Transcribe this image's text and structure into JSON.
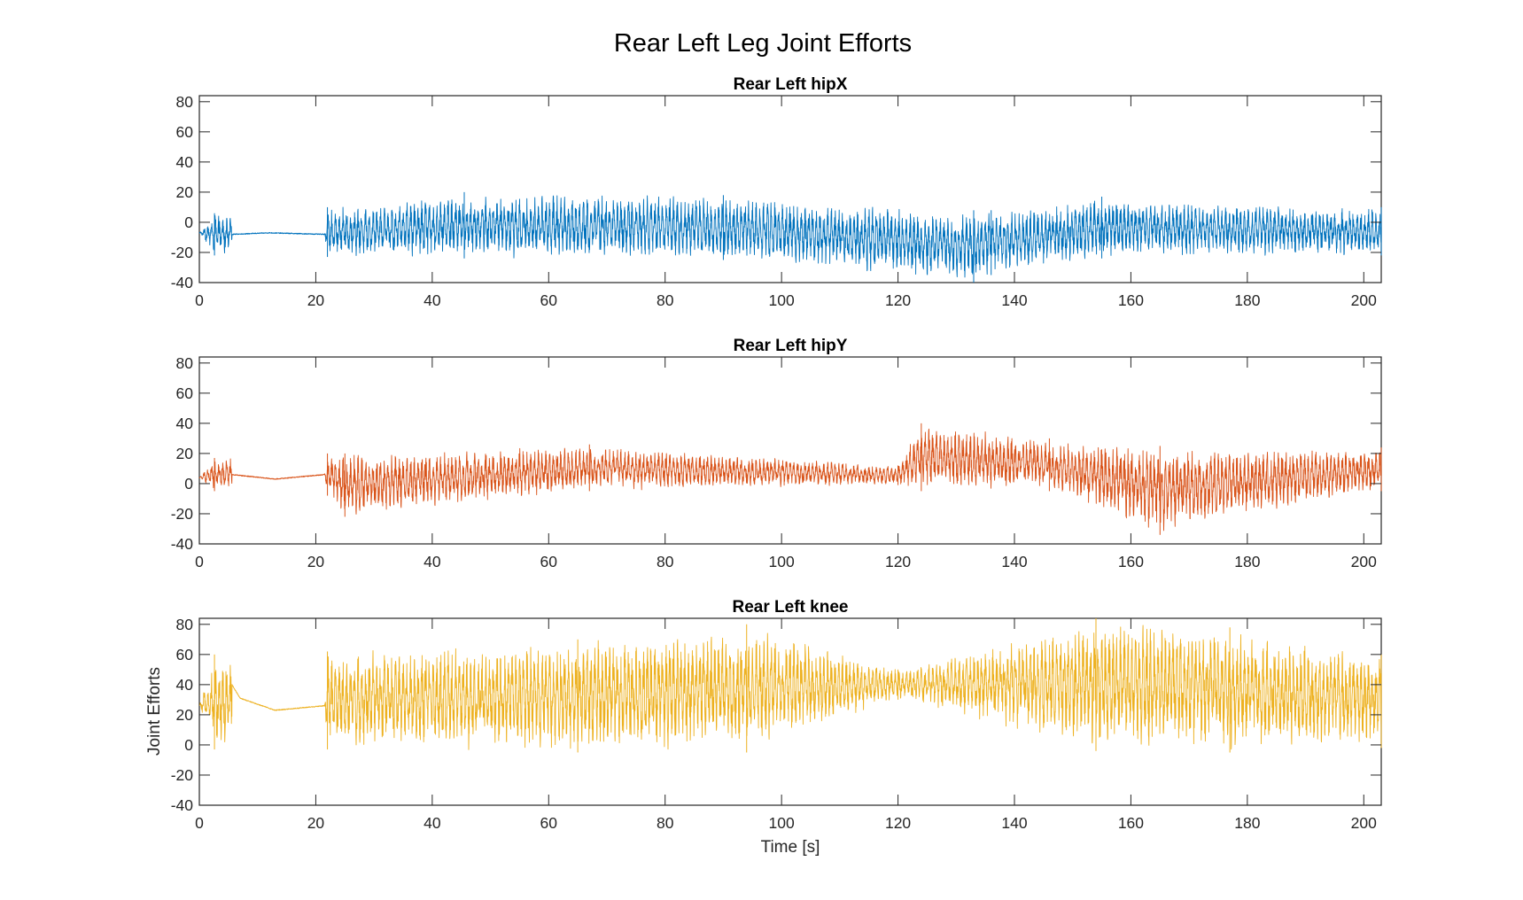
{
  "figure": {
    "title": "Rear Left Leg Joint Efforts"
  },
  "chart_data": [
    {
      "type": "line",
      "title": "Rear Left hipX",
      "xlabel": "",
      "ylabel": "",
      "xlim": [
        0,
        203
      ],
      "ylim": [
        -40,
        84
      ],
      "xticks": [
        "0",
        "20",
        "40",
        "60",
        "80",
        "100",
        "120",
        "140",
        "160",
        "180",
        "200"
      ],
      "yticks": [
        "-40",
        "-20",
        "0",
        "20",
        "40",
        "60",
        "80"
      ],
      "grid": false,
      "series": [
        {
          "color": "#0072BD",
          "envelope": [
            {
              "x": 0,
              "min": -7,
              "max": -7
            },
            {
              "x": 2.6,
              "min": -22,
              "max": 6
            },
            {
              "x": 5.6,
              "min": -8,
              "max": -8
            },
            {
              "x": 12,
              "min": -7,
              "max": -7
            },
            {
              "x": 21.5,
              "min": -8,
              "max": -8
            },
            {
              "x": 22,
              "min": -23,
              "max": 10
            },
            {
              "x": 45.5,
              "min": -24,
              "max": 20
            },
            {
              "x": 90,
              "min": -25,
              "max": 18
            },
            {
              "x": 133,
              "min": -40,
              "max": 8
            },
            {
              "x": 136,
              "min": -35,
              "max": 8
            },
            {
              "x": 155,
              "min": -24,
              "max": 17
            },
            {
              "x": 203,
              "min": -22,
              "max": 10
            }
          ]
        }
      ]
    },
    {
      "type": "line",
      "title": "Rear Left hipY",
      "xlabel": "",
      "ylabel": "",
      "xlim": [
        0,
        203
      ],
      "ylim": [
        -40,
        84
      ],
      "xticks": [
        "0",
        "20",
        "40",
        "60",
        "80",
        "100",
        "120",
        "140",
        "160",
        "180",
        "200"
      ],
      "yticks": [
        "-40",
        "-20",
        "0",
        "20",
        "40",
        "60",
        "80"
      ],
      "grid": false,
      "series": [
        {
          "color": "#D95319",
          "envelope": [
            {
              "x": 0,
              "min": 4,
              "max": 4
            },
            {
              "x": 2.6,
              "min": -5,
              "max": 17
            },
            {
              "x": 5.6,
              "min": 6,
              "max": 6
            },
            {
              "x": 13,
              "min": 3,
              "max": 3
            },
            {
              "x": 21.5,
              "min": 6,
              "max": 6
            },
            {
              "x": 22,
              "min": -8,
              "max": 20
            },
            {
              "x": 25,
              "min": -22,
              "max": 20
            },
            {
              "x": 67,
              "min": -5,
              "max": 26
            },
            {
              "x": 120,
              "min": -1,
              "max": 12
            },
            {
              "x": 124,
              "min": -5,
              "max": 40
            },
            {
              "x": 146,
              "min": -5,
              "max": 30
            },
            {
              "x": 165,
              "min": -34,
              "max": 25
            },
            {
              "x": 203,
              "min": -5,
              "max": 24
            }
          ]
        }
      ]
    },
    {
      "type": "line",
      "title": "Rear Left knee",
      "xlabel": "Time [s]",
      "ylabel": "Joint Efforts",
      "xlim": [
        0,
        203
      ],
      "ylim": [
        -40,
        84
      ],
      "xticks": [
        "0",
        "20",
        "40",
        "60",
        "80",
        "100",
        "120",
        "140",
        "160",
        "180",
        "200"
      ],
      "yticks": [
        "-40",
        "-20",
        "0",
        "20",
        "40",
        "60",
        "80"
      ],
      "grid": false,
      "series": [
        {
          "color": "#EDB120",
          "envelope": [
            {
              "x": 0,
              "min": 26,
              "max": 26
            },
            {
              "x": 2.6,
              "min": -3,
              "max": 60
            },
            {
              "x": 5.6,
              "min": 40,
              "max": 40
            },
            {
              "x": 7,
              "min": 31,
              "max": 31
            },
            {
              "x": 13,
              "min": 23,
              "max": 23
            },
            {
              "x": 21.5,
              "min": 26,
              "max": 26
            },
            {
              "x": 22,
              "min": -3,
              "max": 62
            },
            {
              "x": 65,
              "min": -5,
              "max": 70
            },
            {
              "x": 94,
              "min": -5,
              "max": 80
            },
            {
              "x": 120,
              "min": 30,
              "max": 50
            },
            {
              "x": 154,
              "min": -4,
              "max": 84
            },
            {
              "x": 177,
              "min": -5,
              "max": 78
            },
            {
              "x": 203,
              "min": -2,
              "max": 60
            }
          ]
        }
      ]
    }
  ]
}
